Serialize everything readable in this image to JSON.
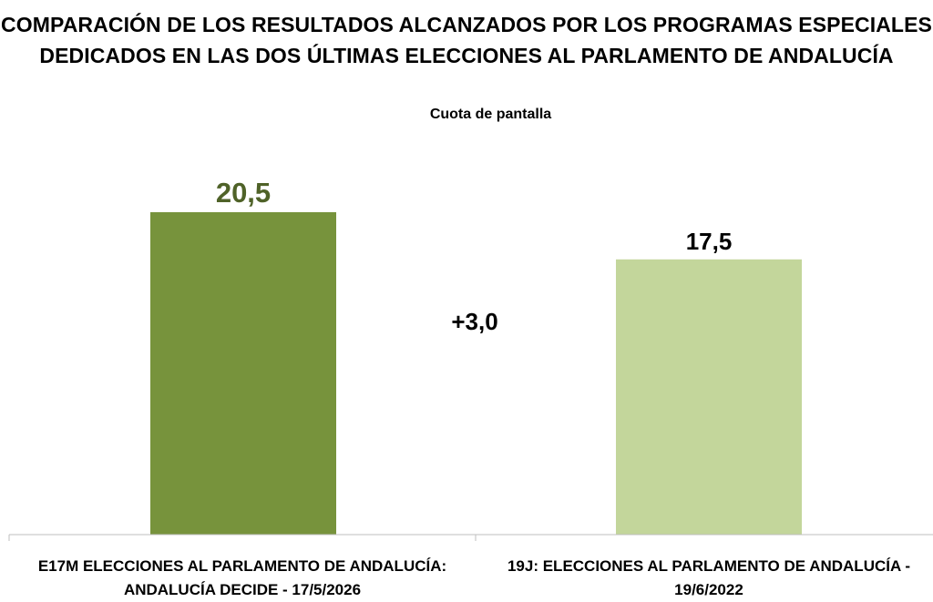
{
  "chart_data": {
    "type": "bar",
    "title": "COMPARACIÓN DE LOS RESULTADOS ALCANZADOS POR LOS PROGRAMAS ESPECIALES DEDICADOS EN LAS DOS ÚLTIMAS ELECCIONES AL PARLAMENTO DE ANDALUCÍA",
    "subtitle": "Cuota de pantalla",
    "categories": [
      "E17M ELECCIONES AL PARLAMENTO DE ANDALUCÍA: ANDALUCÍA DECIDE - 17/5/2026",
      "19J: ELECCIONES AL PARLAMENTO DE ANDALUCÍA - 19/6/2022"
    ],
    "values": [
      20.5,
      17.5
    ],
    "value_labels": [
      "20,5",
      "17,5"
    ],
    "colors": [
      "#77933c",
      "#c3d69b"
    ],
    "label_colors": [
      "#4f6228",
      "#000000"
    ],
    "annotation": "+3,0",
    "ylim": [
      0,
      20.5
    ],
    "grid": false
  }
}
